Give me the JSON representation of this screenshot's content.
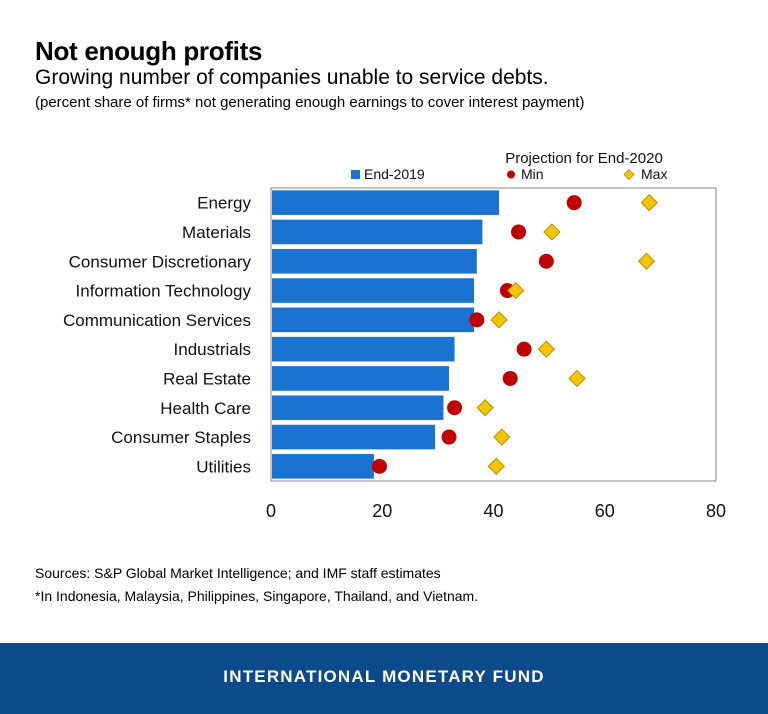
{
  "header": {
    "title": "Not enough profits",
    "subtitle": "Growing number of companies unable to service debts.",
    "note": "(percent share of firms* not generating enough earnings to cover interest payment)"
  },
  "chart_data": {
    "type": "bar",
    "orientation": "horizontal",
    "title": "",
    "legend_title": "Projection for End-2020",
    "categories": [
      "Energy",
      "Materials",
      "Consumer Discretionary",
      "Information Technology",
      "Communication Services",
      "Industrials",
      "Real Estate",
      "Health Care",
      "Consumer Staples",
      "Utilities"
    ],
    "series": [
      {
        "name": "End-2019",
        "kind": "bar",
        "color": "#1a73d1",
        "values": [
          41,
          38,
          37,
          36.5,
          36.5,
          33,
          32,
          31,
          29.5,
          18.5
        ]
      },
      {
        "name": "Min",
        "kind": "point",
        "color": "#c00000",
        "values": [
          54.5,
          44.5,
          49.5,
          42.5,
          37,
          45.5,
          43,
          33,
          32,
          19.5
        ]
      },
      {
        "name": "Max",
        "kind": "point",
        "color": "#f2c500",
        "values": [
          68,
          50.5,
          67.5,
          44,
          41,
          49.5,
          55,
          38.5,
          41.5,
          40.5
        ]
      }
    ],
    "xlim": [
      0,
      80
    ],
    "xticks": [
      0,
      20,
      40,
      60,
      80
    ],
    "xlabel": "",
    "ylabel": "",
    "legend_position": "top"
  },
  "footer": {
    "sources": "Sources: S&P Global Market Intelligence; and IMF staff estimates",
    "footnote": "*In Indonesia, Malaysia, Philippines, Singapore, Thailand, and Vietnam.",
    "org": "INTERNATIONAL MONETARY FUND"
  }
}
